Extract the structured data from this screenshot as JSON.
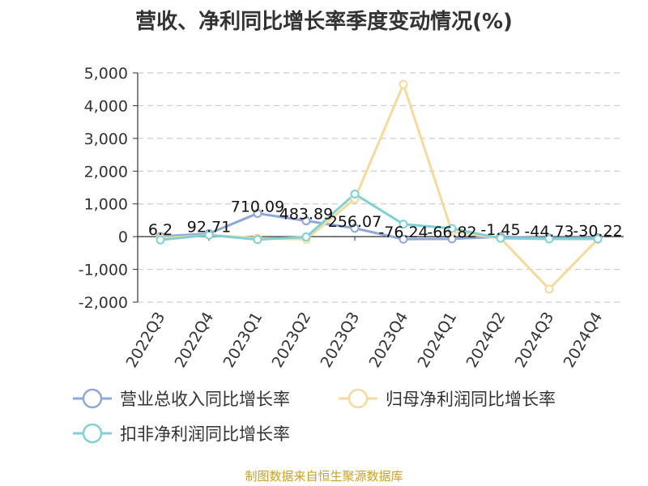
{
  "chart_data": {
    "type": "line",
    "title": "营收、净利同比增长率季度变动情况(%)",
    "categories": [
      "2022Q3",
      "2022Q4",
      "2023Q1",
      "2023Q2",
      "2023Q3",
      "2023Q4",
      "2024Q1",
      "2024Q2",
      "2024Q3",
      "2024Q4"
    ],
    "ylim": [
      -2000,
      5000
    ],
    "yticks": [
      "5,000",
      "4,000",
      "3,000",
      "2,000",
      "1,000",
      "0",
      "-1,000",
      "-2,000"
    ],
    "ytick_values": [
      5000,
      4000,
      3000,
      2000,
      1000,
      0,
      -1000,
      -2000
    ],
    "grid": true,
    "legend_position": "bottom",
    "series": [
      {
        "name": "营业总收入同比增长率",
        "color": "#8fa8d8",
        "values": [
          6.2,
          92.71,
          710.09,
          483.89,
          256.07,
          -76.24,
          -66.82,
          -1.45,
          -44.73,
          -30.22
        ],
        "labels": [
          "6.2",
          "92.71",
          "710.09",
          "483.89",
          "256.07",
          "-76.24",
          "-66.82",
          "-1.45",
          "-44.73",
          "-30.22"
        ]
      },
      {
        "name": "归母净利润同比增长率",
        "color": "#f6d99c",
        "values": [
          -50,
          50,
          -50,
          -80,
          1150,
          4650,
          150,
          -50,
          -1600,
          -80
        ]
      },
      {
        "name": "扣非净利润同比增长率",
        "color": "#7fd1d3",
        "values": [
          -100,
          50,
          -90,
          -10,
          1300,
          380,
          250,
          -50,
          -70,
          -70
        ]
      }
    ]
  },
  "source": "制图数据来自恒生聚源数据库"
}
